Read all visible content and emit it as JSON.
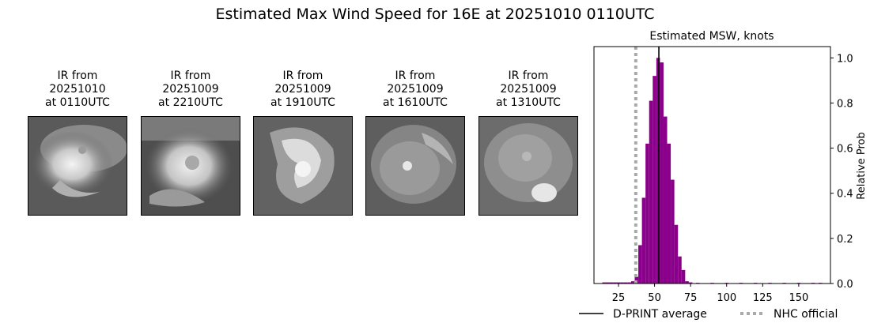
{
  "figure": {
    "title": "Estimated Max Wind Speed for 16E at 20251010 0110UTC"
  },
  "ir_panels": [
    {
      "line1": "IR from",
      "line2": "20251010",
      "line3": "at 0110UTC"
    },
    {
      "line1": "IR from",
      "line2": "20251009",
      "line3": "at 2210UTC"
    },
    {
      "line1": "IR from",
      "line2": "20251009",
      "line3": "at 1910UTC"
    },
    {
      "line1": "IR from",
      "line2": "20251009",
      "line3": "at 1610UTC"
    },
    {
      "line1": "IR from",
      "line2": "20251009",
      "line3": "at 1310UTC"
    }
  ],
  "chart_data": {
    "type": "bar",
    "title": "Estimated MSW, knots",
    "xlabel": "",
    "ylabel": "Relative Prob",
    "xlim": [
      8,
      172
    ],
    "ylim": [
      0,
      1.05
    ],
    "xticks": [
      25,
      50,
      75,
      100,
      125,
      150
    ],
    "yticks": [
      0.0,
      0.2,
      0.4,
      0.6,
      0.8,
      1.0
    ],
    "bar_color": "#8b008b",
    "bin_width": 2.5,
    "bins": [
      {
        "x": 15,
        "y": 0.005
      },
      {
        "x": 17.5,
        "y": 0.005
      },
      {
        "x": 20,
        "y": 0.005
      },
      {
        "x": 22.5,
        "y": 0.005
      },
      {
        "x": 25,
        "y": 0.005
      },
      {
        "x": 27.5,
        "y": 0.005
      },
      {
        "x": 30,
        "y": 0.005
      },
      {
        "x": 32.5,
        "y": 0.005
      },
      {
        "x": 35,
        "y": 0.01
      },
      {
        "x": 37.5,
        "y": 0.03
      },
      {
        "x": 40,
        "y": 0.17
      },
      {
        "x": 42.5,
        "y": 0.38
      },
      {
        "x": 45,
        "y": 0.62
      },
      {
        "x": 47.5,
        "y": 0.81
      },
      {
        "x": 50,
        "y": 0.92
      },
      {
        "x": 52.5,
        "y": 1.0
      },
      {
        "x": 55,
        "y": 0.98
      },
      {
        "x": 57.5,
        "y": 0.74
      },
      {
        "x": 60,
        "y": 0.62
      },
      {
        "x": 62.5,
        "y": 0.46
      },
      {
        "x": 65,
        "y": 0.26
      },
      {
        "x": 67.5,
        "y": 0.12
      },
      {
        "x": 70,
        "y": 0.06
      },
      {
        "x": 72.5,
        "y": 0.01
      },
      {
        "x": 75,
        "y": 0.005
      },
      {
        "x": 80,
        "y": 0.003
      },
      {
        "x": 90,
        "y": 0.003
      },
      {
        "x": 100,
        "y": 0.003
      },
      {
        "x": 110,
        "y": 0.003
      },
      {
        "x": 120,
        "y": 0.003
      },
      {
        "x": 130,
        "y": 0.003
      },
      {
        "x": 140,
        "y": 0.003
      },
      {
        "x": 150,
        "y": 0.003
      },
      {
        "x": 160,
        "y": 0.003
      },
      {
        "x": 165,
        "y": 0.003
      }
    ],
    "dprint_average": 53,
    "nhc_official": 37,
    "legend": {
      "placement": "bottom",
      "dprint_label": "D-PRINT average",
      "nhc_label": "NHC official"
    }
  }
}
